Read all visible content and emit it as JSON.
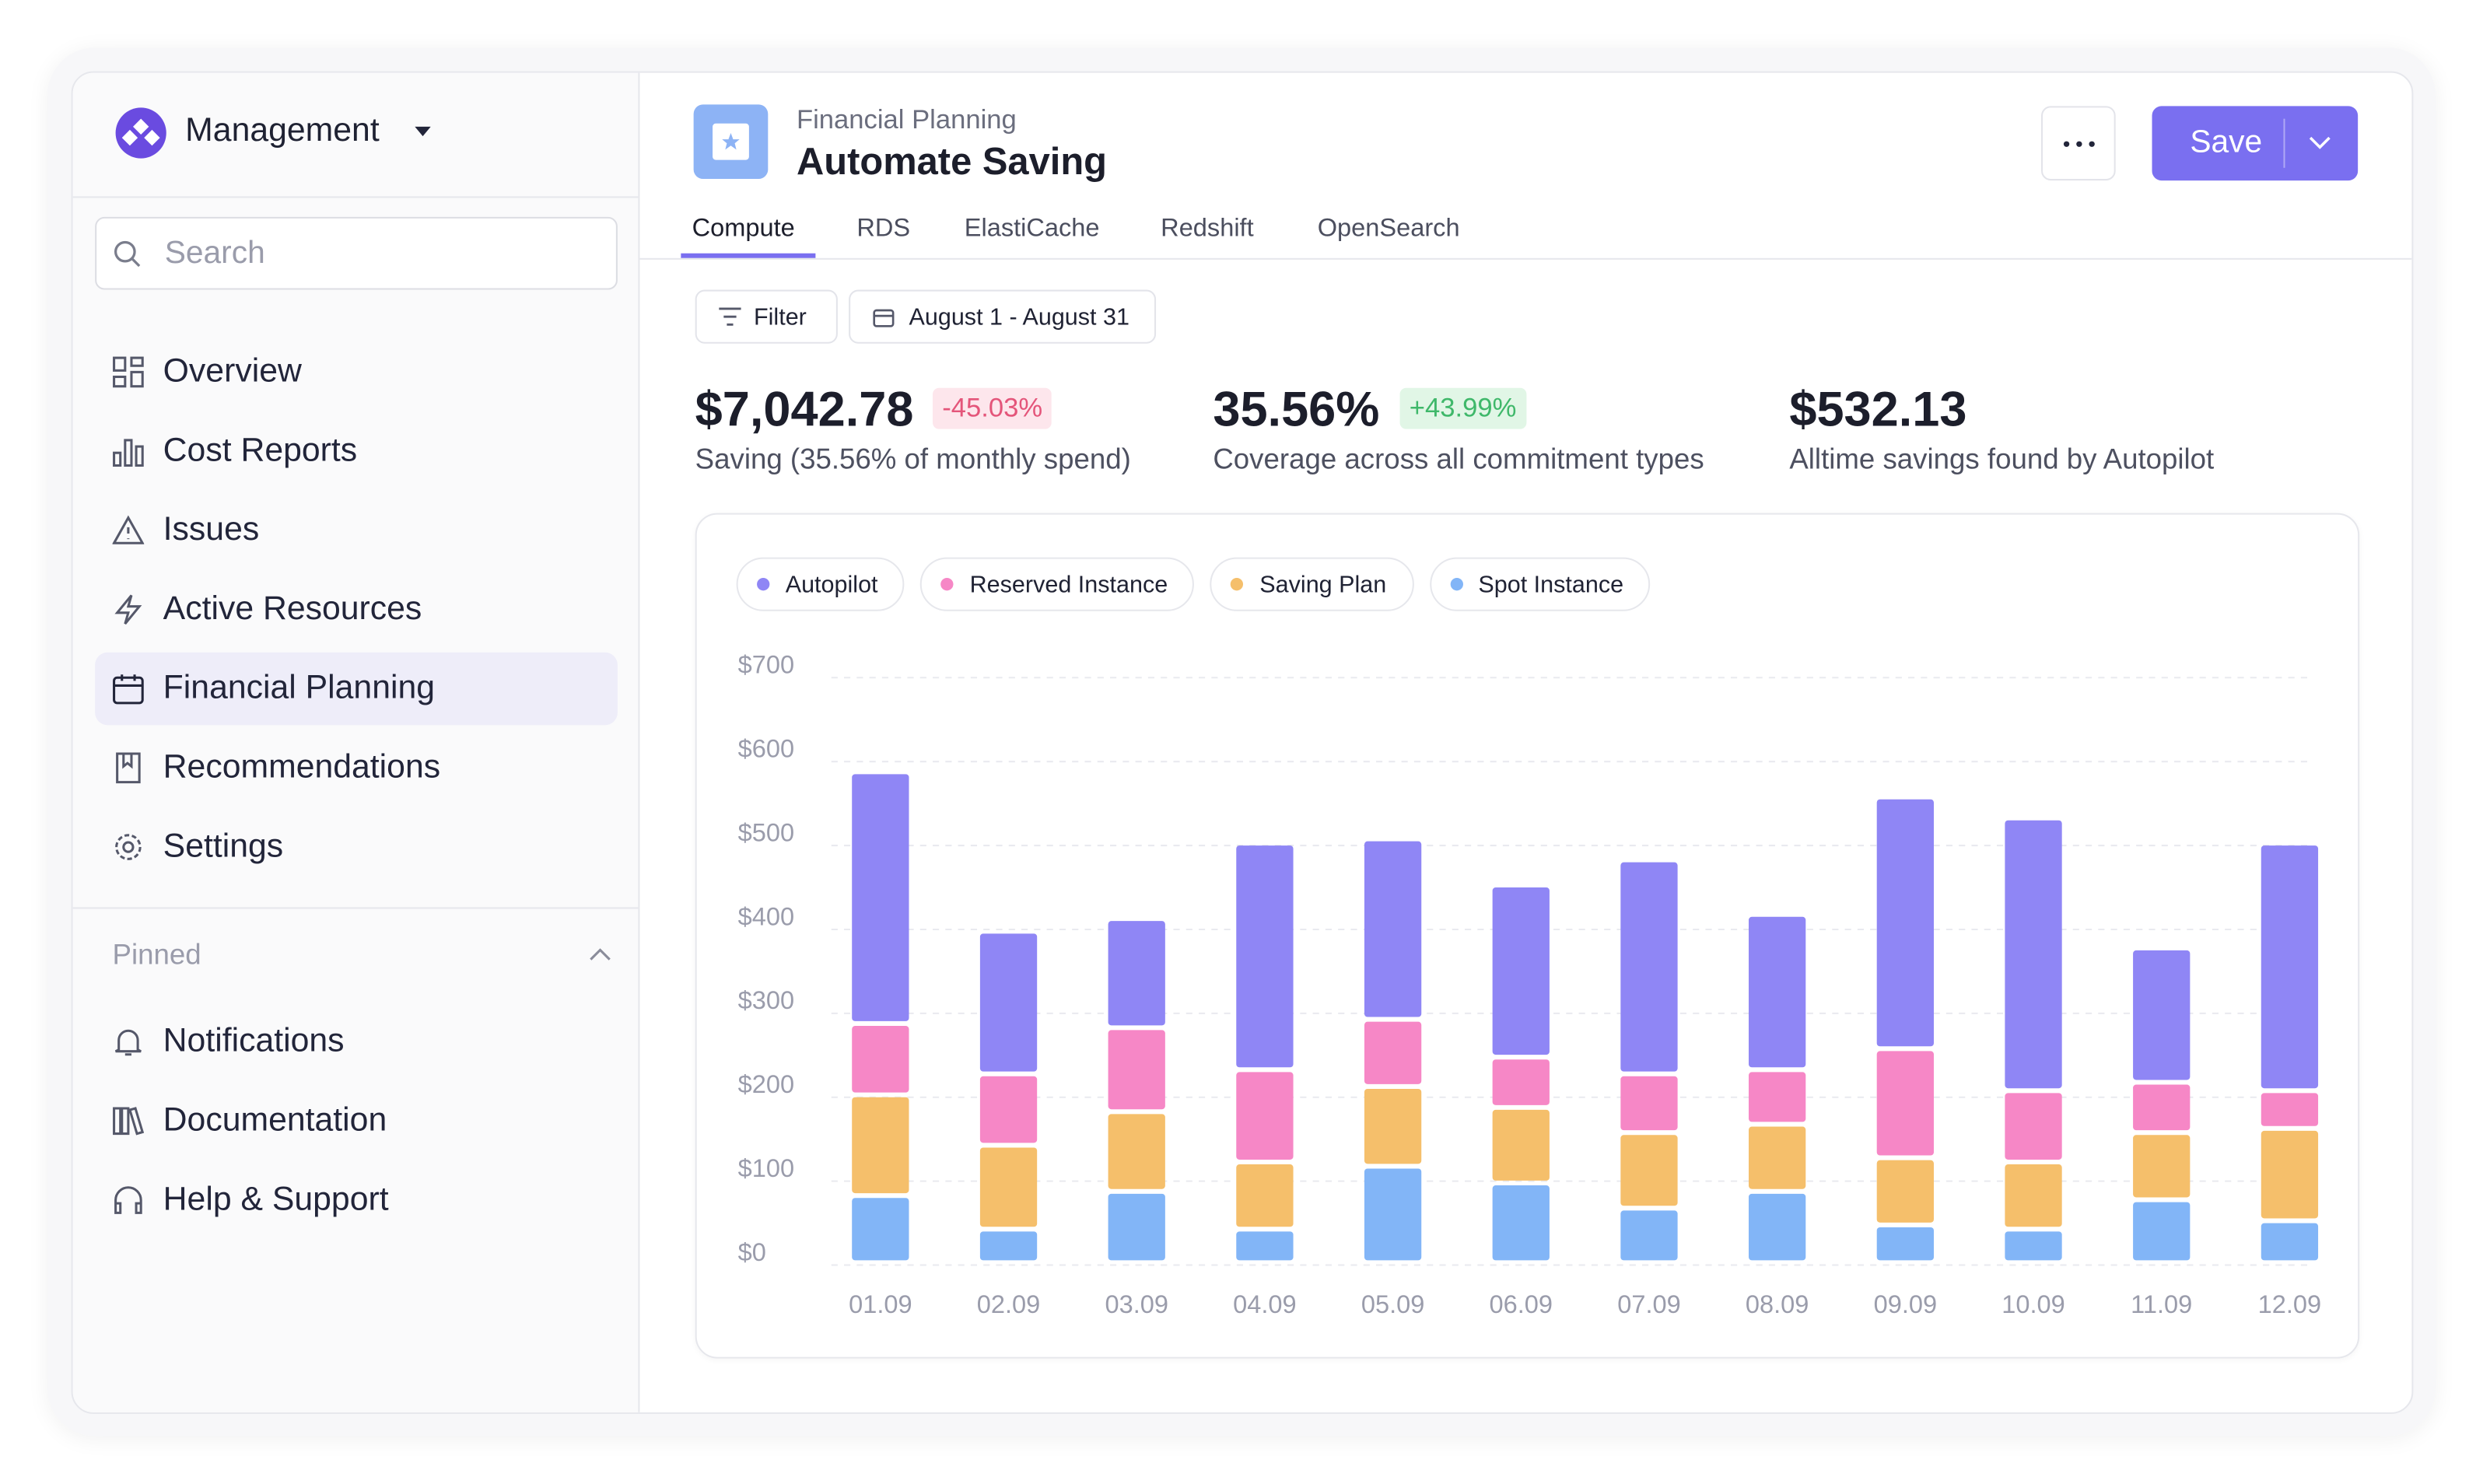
{
  "sidebar": {
    "workspace": "Management",
    "search_placeholder": "Search",
    "nav": [
      "Overview",
      "Cost Reports",
      "Issues",
      "Active Resources",
      "Financial Planning",
      "Recommendations",
      "Settings"
    ],
    "pinned_label": "Pinned",
    "pinned": [
      "Notifications",
      "Documentation",
      "Help & Support"
    ]
  },
  "header": {
    "breadcrumb": "Financial Planning",
    "title": "Automate Saving",
    "save": "Save"
  },
  "tabs": [
    "Compute",
    "RDS",
    "ElastiCache",
    "Redshift",
    "OpenSearch"
  ],
  "filters": {
    "filter": "Filter",
    "date_range": "August 1 - August 31"
  },
  "stats": [
    {
      "value": "$7,042.78",
      "change": "-45.03%",
      "label": "Saving (35.56% of monthly spend)"
    },
    {
      "value": "35.56%",
      "change": "+43.99%",
      "label": "Coverage across all commitment types"
    },
    {
      "value": "$532.13",
      "label": "Alltime savings found by Autopilot"
    }
  ],
  "chart_data": {
    "type": "stacked_bar",
    "categories": [
      "01.09",
      "02.09",
      "03.09",
      "04.09",
      "05.09",
      "06.09",
      "07.09",
      "08.09",
      "09.09",
      "10.09",
      "11.09",
      "12.09"
    ],
    "series": [
      {
        "name": "Autopilot",
        "color": "#8f86f5",
        "values": [
          300,
          170,
          130,
          270,
          215,
          205,
          255,
          185,
          300,
          325,
          160,
          295
        ]
      },
      {
        "name": "Reserved Instance",
        "color": "#f687c6",
        "values": [
          85,
          85,
          100,
          110,
          80,
          60,
          70,
          65,
          130,
          85,
          60,
          45
        ]
      },
      {
        "name": "Saving Plan",
        "color": "#f5bf6b",
        "values": [
          120,
          100,
          95,
          80,
          95,
          90,
          90,
          80,
          80,
          80,
          80,
          110
        ]
      },
      {
        "name": "Spot Instance",
        "color": "#82b5f7",
        "values": [
          80,
          40,
          85,
          40,
          115,
          95,
          65,
          85,
          45,
          40,
          75,
          50
        ]
      }
    ],
    "ylim": [
      0,
      700
    ],
    "yticks": [
      {
        "value": 0,
        "label": "$0"
      },
      {
        "value": 100,
        "label": "$100"
      },
      {
        "value": 200,
        "label": "$200"
      },
      {
        "value": 300,
        "label": "$300"
      },
      {
        "value": 400,
        "label": "$400"
      },
      {
        "value": 500,
        "label": "$500"
      },
      {
        "value": 600,
        "label": "$600"
      },
      {
        "value": 700,
        "label": "$700"
      }
    ],
    "grid": true
  }
}
